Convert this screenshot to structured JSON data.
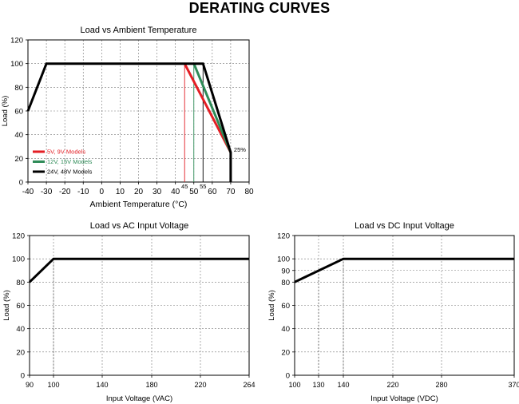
{
  "page_title": "DERATING CURVES",
  "chart_data": [
    {
      "id": "temp",
      "type": "line",
      "title": "Load vs Ambient Temperature",
      "xlabel": "Ambient Temperature (°C)",
      "ylabel": "Load (%)",
      "xlim": [
        -40,
        80
      ],
      "ylim": [
        0,
        120
      ],
      "x_ticks": [
        "-40",
        "-30",
        "-20",
        "-10",
        "0",
        "10",
        "20",
        "30",
        "40",
        "50",
        "60",
        "70",
        "80"
      ],
      "x_ticks_extra": [
        "45",
        "55"
      ],
      "y_ticks": [
        "0",
        "20",
        "40",
        "60",
        "80",
        "100",
        "120"
      ],
      "grid": true,
      "annotations": [
        {
          "text": "25%",
          "x": 70,
          "y": 25
        }
      ],
      "legend_position": "bottom-left",
      "series": [
        {
          "name": "5V, 9V Models",
          "color": "#e31e24",
          "x": [
            45,
            70
          ],
          "y": [
            100,
            25
          ]
        },
        {
          "name": "12V, 15V Models",
          "color": "#2e8b57",
          "x": [
            50,
            70
          ],
          "y": [
            100,
            25
          ]
        },
        {
          "name": "24V, 48V Models",
          "color": "#000000",
          "x": [
            -40,
            -30,
            55,
            70,
            70
          ],
          "y": [
            60,
            100,
            100,
            25,
            0
          ]
        }
      ],
      "markers": [
        {
          "color": "#e31e24",
          "x": 45
        },
        {
          "color": "#2e8b57",
          "x": 50
        },
        {
          "color": "#000000",
          "x": 55
        }
      ]
    },
    {
      "id": "ac",
      "type": "line",
      "title": "Load vs AC Input Voltage",
      "xlabel": "Input Voltage (VAC)",
      "ylabel": "Load (%)",
      "x_ticks": [
        "90",
        "100",
        "140",
        "180",
        "220",
        "264"
      ],
      "y_ticks": [
        "0",
        "20",
        "40",
        "60",
        "80",
        "100",
        "120"
      ],
      "xlim": [
        90,
        264
      ],
      "ylim": [
        0,
        120
      ],
      "grid": true,
      "series": [
        {
          "color": "#000000",
          "x": [
            90,
            100,
            264
          ],
          "y": [
            80,
            100,
            100
          ]
        }
      ]
    },
    {
      "id": "dc",
      "type": "line",
      "title": "Load vs DC Input Voltage",
      "xlabel": "Input Voltage (VDC)",
      "ylabel": "Load (%)",
      "x_ticks": [
        "100",
        "130",
        "140",
        "220",
        "280",
        "370"
      ],
      "y_ticks": [
        "0",
        "20",
        "40",
        "60",
        "80",
        "90",
        "100",
        "120"
      ],
      "xlim": [
        100,
        370
      ],
      "ylim": [
        0,
        120
      ],
      "grid": true,
      "series": [
        {
          "color": "#000000",
          "x": [
            100,
            140,
            370
          ],
          "y": [
            80,
            100,
            100
          ]
        }
      ]
    }
  ]
}
